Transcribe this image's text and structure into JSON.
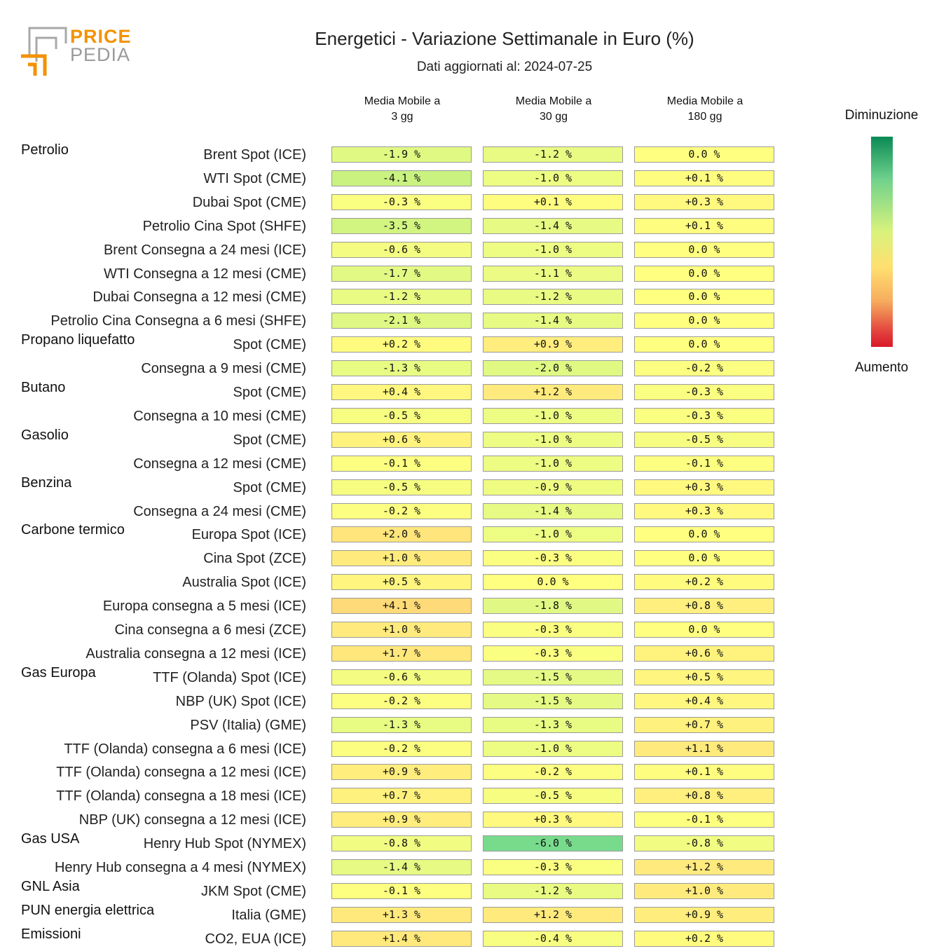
{
  "logo": {
    "line1": "PRICE",
    "line2": "PEDIA"
  },
  "colors": {
    "logo_orange": "#f39200",
    "logo_gray": "#9a9a9a"
  },
  "chart_data": {
    "type": "table",
    "title": "Energetici - Variazione Settimanale in Euro (%)",
    "subtitle": "Dati aggiornati al: 2024-07-25",
    "columns": [
      "Media Mobile a\n3 gg",
      "Media Mobile a\n30 gg",
      "Media Mobile a\n180 gg"
    ],
    "legend": {
      "top": "Diminuzione",
      "bottom": "Aumento"
    },
    "rows": [
      {
        "group": "Petrolio",
        "label": "Brent Spot (ICE)",
        "values": [
          "-1.9 %",
          "-1.2 %",
          "0.0 %"
        ]
      },
      {
        "group": "",
        "label": "WTI Spot (CME)",
        "values": [
          "-4.1 %",
          "-1.0 %",
          "+0.1 %"
        ]
      },
      {
        "group": "",
        "label": "Dubai Spot (CME)",
        "values": [
          "-0.3 %",
          "+0.1 %",
          "+0.3 %"
        ]
      },
      {
        "group": "",
        "label": "Petrolio Cina Spot (SHFE)",
        "values": [
          "-3.5 %",
          "-1.4 %",
          "+0.1 %"
        ]
      },
      {
        "group": "",
        "label": "Brent Consegna a 24 mesi (ICE)",
        "values": [
          "-0.6 %",
          "-1.0 %",
          "0.0 %"
        ]
      },
      {
        "group": "",
        "label": "WTI Consegna a 12 mesi (CME)",
        "values": [
          "-1.7 %",
          "-1.1 %",
          "0.0 %"
        ]
      },
      {
        "group": "",
        "label": "Dubai Consegna a 12 mesi (CME)",
        "values": [
          "-1.2 %",
          "-1.2 %",
          "0.0 %"
        ]
      },
      {
        "group": "",
        "label": "Petrolio Cina Consegna a 6 mesi (SHFE)",
        "values": [
          "-2.1 %",
          "-1.4 %",
          "0.0 %"
        ]
      },
      {
        "group": "Propano liquefatto",
        "label": "Spot (CME)",
        "values": [
          "+0.2 %",
          "+0.9 %",
          "0.0 %"
        ]
      },
      {
        "group": "",
        "label": "Consegna a 9 mesi (CME)",
        "values": [
          "-1.3 %",
          "-2.0 %",
          "-0.2 %"
        ]
      },
      {
        "group": "Butano",
        "label": "Spot (CME)",
        "values": [
          "+0.4 %",
          "+1.2 %",
          "-0.3 %"
        ]
      },
      {
        "group": "",
        "label": "Consegna a 10 mesi (CME)",
        "values": [
          "-0.5 %",
          "-1.0 %",
          "-0.3 %"
        ]
      },
      {
        "group": "Gasolio",
        "label": "Spot (CME)",
        "values": [
          "+0.6 %",
          "-1.0 %",
          "-0.5 %"
        ]
      },
      {
        "group": "",
        "label": "Consegna a 12 mesi (CME)",
        "values": [
          "-0.1 %",
          "-1.0 %",
          "-0.1 %"
        ]
      },
      {
        "group": "Benzina",
        "label": "Spot (CME)",
        "values": [
          "-0.5 %",
          "-0.9 %",
          "+0.3 %"
        ]
      },
      {
        "group": "",
        "label": "Consegna a 24 mesi (CME)",
        "values": [
          "-0.2 %",
          "-1.4 %",
          "+0.3 %"
        ]
      },
      {
        "group": "Carbone termico",
        "label": "Europa Spot (ICE)",
        "values": [
          "+2.0 %",
          "-1.0 %",
          "0.0 %"
        ]
      },
      {
        "group": "",
        "label": "Cina Spot (ZCE)",
        "values": [
          "+1.0 %",
          "-0.3 %",
          "0.0 %"
        ]
      },
      {
        "group": "",
        "label": "Australia Spot (ICE)",
        "values": [
          "+0.5 %",
          "0.0 %",
          "+0.2 %"
        ]
      },
      {
        "group": "",
        "label": "Europa consegna a 5 mesi (ICE)",
        "values": [
          "+4.1 %",
          "-1.8 %",
          "+0.8 %"
        ]
      },
      {
        "group": "",
        "label": "Cina consegna a 6 mesi (ZCE)",
        "values": [
          "+1.0 %",
          "-0.3 %",
          "0.0 %"
        ]
      },
      {
        "group": "",
        "label": "Australia consegna a 12 mesi (ICE)",
        "values": [
          "+1.7 %",
          "-0.3 %",
          "+0.6 %"
        ]
      },
      {
        "group": "Gas Europa",
        "label": "TTF (Olanda) Spot (ICE)",
        "values": [
          "-0.6 %",
          "-1.5 %",
          "+0.5 %"
        ]
      },
      {
        "group": "",
        "label": "NBP (UK) Spot (ICE)",
        "values": [
          "-0.2 %",
          "-1.5 %",
          "+0.4 %"
        ]
      },
      {
        "group": "",
        "label": "PSV (Italia) (GME)",
        "values": [
          "-1.3 %",
          "-1.3 %",
          "+0.7 %"
        ]
      },
      {
        "group": "",
        "label": "TTF (Olanda) consegna a 6 mesi (ICE)",
        "values": [
          "-0.2 %",
          "-1.0 %",
          "+1.1 %"
        ]
      },
      {
        "group": "",
        "label": "TTF (Olanda) consegna a 12 mesi (ICE)",
        "values": [
          "+0.9 %",
          "-0.2 %",
          "+0.1 %"
        ]
      },
      {
        "group": "",
        "label": "TTF (Olanda) consegna a 18 mesi (ICE)",
        "values": [
          "+0.7 %",
          "-0.5 %",
          "+0.8 %"
        ]
      },
      {
        "group": "",
        "label": "NBP (UK) consegna a 12 mesi (ICE)",
        "values": [
          "+0.9 %",
          "+0.3 %",
          "-0.1 %"
        ]
      },
      {
        "group": "Gas USA",
        "label": "Henry Hub Spot (NYMEX)",
        "values": [
          "-0.8 %",
          "-6.0 %",
          "-0.8 %"
        ]
      },
      {
        "group": "",
        "label": "Henry Hub consegna a 4 mesi (NYMEX)",
        "values": [
          "-1.4 %",
          "-0.3 %",
          "+1.2 %"
        ]
      },
      {
        "group": "GNL Asia",
        "label": "JKM Spot (CME)",
        "values": [
          "-0.1 %",
          "-1.2 %",
          "+1.0 %"
        ]
      },
      {
        "group": "PUN energia elettrica",
        "label": "Italia (GME)",
        "values": [
          "+1.3 %",
          "+1.2 %",
          "+0.9 %"
        ]
      },
      {
        "group": "Emissioni",
        "label": "CO2, EUA (ICE)",
        "values": [
          "+1.4 %",
          "-0.4 %",
          "+0.2 %"
        ]
      }
    ]
  }
}
